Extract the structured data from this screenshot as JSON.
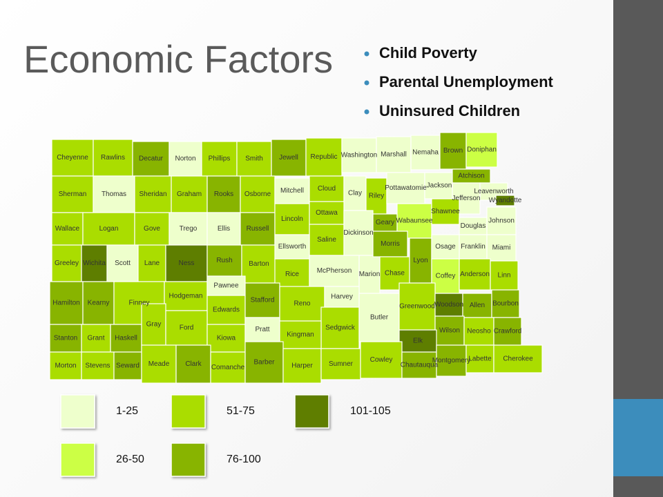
{
  "slide": {
    "title": "Economic Factors",
    "bullets": [
      "Child Poverty",
      "Parental Unemployment",
      "Uninsured Children"
    ],
    "legend": [
      {
        "label": "1-25",
        "color": "#eeffcc"
      },
      {
        "label": "26-50",
        "color": "#ccff44"
      },
      {
        "label": "51-75",
        "color": "#aadd00"
      },
      {
        "label": "76-100",
        "color": "#88b400"
      },
      {
        "label": "101-105",
        "color": "#5e7e00"
      }
    ],
    "counties": [
      {
        "name": "Cheyenne",
        "shade": 2
      },
      {
        "name": "Rawlins",
        "shade": 2
      },
      {
        "name": "Decatur",
        "shade": 3
      },
      {
        "name": "Norton",
        "shade": 0
      },
      {
        "name": "Phillips",
        "shade": 2
      },
      {
        "name": "Smith",
        "shade": 2
      },
      {
        "name": "Jewell",
        "shade": 3
      },
      {
        "name": "Republic",
        "shade": 2
      },
      {
        "name": "Washington",
        "shade": 0
      },
      {
        "name": "Marshall",
        "shade": 0
      },
      {
        "name": "Nemaha",
        "shade": 0
      },
      {
        "name": "Brown",
        "shade": 3
      },
      {
        "name": "Doniphan",
        "shade": 1
      },
      {
        "name": "Sherman",
        "shade": 2
      },
      {
        "name": "Thomas",
        "shade": 0
      },
      {
        "name": "Sheridan",
        "shade": 2
      },
      {
        "name": "Graham",
        "shade": 2
      },
      {
        "name": "Rooks",
        "shade": 3
      },
      {
        "name": "Osborne",
        "shade": 2
      },
      {
        "name": "Mitchell",
        "shade": 0
      },
      {
        "name": "Cloud",
        "shade": 2
      },
      {
        "name": "Clay",
        "shade": 0
      },
      {
        "name": "Riley",
        "shade": 2
      },
      {
        "name": "Pottawatomie",
        "shade": 0
      },
      {
        "name": "Jackson",
        "shade": 0
      },
      {
        "name": "Atchison",
        "shade": 3
      },
      {
        "name": "Jefferson",
        "shade": 0
      },
      {
        "name": "Leavenworth",
        "shade": 0
      },
      {
        "name": "Wyandotte",
        "shade": 4
      },
      {
        "name": "Wallace",
        "shade": 2
      },
      {
        "name": "Logan",
        "shade": 2
      },
      {
        "name": "Gove",
        "shade": 2
      },
      {
        "name": "Trego",
        "shade": 0
      },
      {
        "name": "Ellis",
        "shade": 0
      },
      {
        "name": "Russell",
        "shade": 3
      },
      {
        "name": "Lincoln",
        "shade": 2
      },
      {
        "name": "Ottawa",
        "shade": 2
      },
      {
        "name": "Saline",
        "shade": 2
      },
      {
        "name": "Dickinson",
        "shade": 0
      },
      {
        "name": "Geary",
        "shade": 3
      },
      {
        "name": "Wabaunsee",
        "shade": 1
      },
      {
        "name": "Shawnee",
        "shade": 2
      },
      {
        "name": "Douglas",
        "shade": 0
      },
      {
        "name": "Johnson",
        "shade": 0
      },
      {
        "name": "Greeley",
        "shade": 2
      },
      {
        "name": "Wichita",
        "shade": 4
      },
      {
        "name": "Scott",
        "shade": 0
      },
      {
        "name": "Lane",
        "shade": 2
      },
      {
        "name": "Ness",
        "shade": 4
      },
      {
        "name": "Rush",
        "shade": 3
      },
      {
        "name": "Barton",
        "shade": 2
      },
      {
        "name": "Ellsworth",
        "shade": 0
      },
      {
        "name": "Rice",
        "shade": 2
      },
      {
        "name": "McPherson",
        "shade": 0
      },
      {
        "name": "Marion",
        "shade": 0
      },
      {
        "name": "Morris",
        "shade": 3
      },
      {
        "name": "Chase",
        "shade": 2
      },
      {
        "name": "Lyon",
        "shade": 3
      },
      {
        "name": "Osage",
        "shade": 0
      },
      {
        "name": "Franklin",
        "shade": 0
      },
      {
        "name": "Miami",
        "shade": 0
      },
      {
        "name": "Coffey",
        "shade": 1
      },
      {
        "name": "Anderson",
        "shade": 2
      },
      {
        "name": "Linn",
        "shade": 2
      },
      {
        "name": "Hamilton",
        "shade": 3
      },
      {
        "name": "Kearny",
        "shade": 3
      },
      {
        "name": "Finney",
        "shade": 2
      },
      {
        "name": "Hodgeman",
        "shade": 2
      },
      {
        "name": "Pawnee",
        "shade": 0
      },
      {
        "name": "Edwards",
        "shade": 2
      },
      {
        "name": "Stafford",
        "shade": 3
      },
      {
        "name": "Reno",
        "shade": 2
      },
      {
        "name": "Harvey",
        "shade": 0
      },
      {
        "name": "Sedgwick",
        "shade": 2
      },
      {
        "name": "Butler",
        "shade": 0
      },
      {
        "name": "Greenwood",
        "shade": 2
      },
      {
        "name": "Woodson",
        "shade": 4
      },
      {
        "name": "Allen",
        "shade": 3
      },
      {
        "name": "Bourbon",
        "shade": 3
      },
      {
        "name": "Stanton",
        "shade": 3
      },
      {
        "name": "Grant",
        "shade": 2
      },
      {
        "name": "Haskell",
        "shade": 3
      },
      {
        "name": "Gray",
        "shade": 2
      },
      {
        "name": "Ford",
        "shade": 2
      },
      {
        "name": "Kiowa",
        "shade": 2
      },
      {
        "name": "Pratt",
        "shade": 0
      },
      {
        "name": "Kingman",
        "shade": 2
      },
      {
        "name": "Wilson",
        "shade": 3
      },
      {
        "name": "Neosho",
        "shade": 2
      },
      {
        "name": "Crawford",
        "shade": 3
      },
      {
        "name": "Elk",
        "shade": 4
      },
      {
        "name": "Morton",
        "shade": 2
      },
      {
        "name": "Stevens",
        "shade": 2
      },
      {
        "name": "Seward",
        "shade": 3
      },
      {
        "name": "Meade",
        "shade": 2
      },
      {
        "name": "Clark",
        "shade": 3
      },
      {
        "name": "Comanche",
        "shade": 2
      },
      {
        "name": "Barber",
        "shade": 3
      },
      {
        "name": "Harper",
        "shade": 2
      },
      {
        "name": "Sumner",
        "shade": 2
      },
      {
        "name": "Cowley",
        "shade": 2
      },
      {
        "name": "Chautauqua",
        "shade": 3
      },
      {
        "name": "Montgomery",
        "shade": 3
      },
      {
        "name": "Labette",
        "shade": 2
      },
      {
        "name": "Cherokee",
        "shade": 2
      }
    ]
  }
}
